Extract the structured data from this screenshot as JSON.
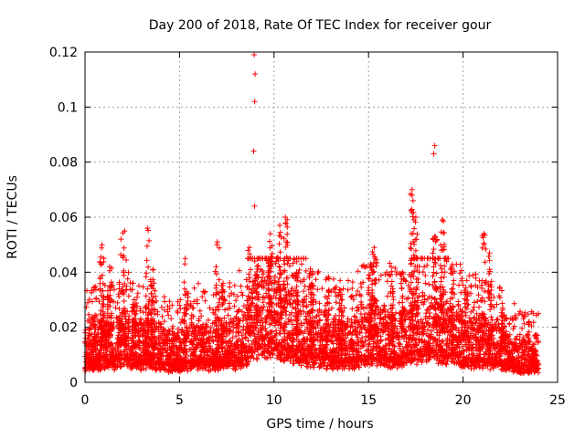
{
  "chart_data": {
    "type": "scatter",
    "title": "Day 200 of 2018, Rate Of TEC Index for receiver gour",
    "xlabel": "GPS time / hours",
    "ylabel": "ROTI / TECUs",
    "xlim": [
      0,
      25
    ],
    "ylim": [
      0,
      0.12
    ],
    "xticks": [
      "0",
      "5",
      "10",
      "15",
      "20",
      "25"
    ],
    "yticks": [
      "0",
      "0.02",
      "0.04",
      "0.06",
      "0.08",
      "0.1",
      "0.12"
    ],
    "grid": true,
    "marker": "+",
    "color": "#ff0000",
    "baseline": [
      [
        0.0,
        0.011
      ],
      [
        0.5,
        0.012
      ],
      [
        1.0,
        0.013
      ],
      [
        1.5,
        0.012
      ],
      [
        2.0,
        0.014
      ],
      [
        2.5,
        0.013
      ],
      [
        3.0,
        0.012
      ],
      [
        3.5,
        0.013
      ],
      [
        4.0,
        0.011
      ],
      [
        4.5,
        0.01
      ],
      [
        5.0,
        0.01
      ],
      [
        5.5,
        0.011
      ],
      [
        6.0,
        0.012
      ],
      [
        6.5,
        0.011
      ],
      [
        7.0,
        0.012
      ],
      [
        7.5,
        0.012
      ],
      [
        8.0,
        0.013
      ],
      [
        8.5,
        0.016
      ],
      [
        9.0,
        0.022
      ],
      [
        9.5,
        0.025
      ],
      [
        10.0,
        0.022
      ],
      [
        10.5,
        0.02
      ],
      [
        11.0,
        0.018
      ],
      [
        11.5,
        0.016
      ],
      [
        12.0,
        0.015
      ],
      [
        12.5,
        0.014
      ],
      [
        13.0,
        0.013
      ],
      [
        13.5,
        0.012
      ],
      [
        14.0,
        0.013
      ],
      [
        14.5,
        0.014
      ],
      [
        15.0,
        0.016
      ],
      [
        15.5,
        0.017
      ],
      [
        16.0,
        0.015
      ],
      [
        16.5,
        0.014
      ],
      [
        17.0,
        0.016
      ],
      [
        17.5,
        0.018
      ],
      [
        18.0,
        0.018
      ],
      [
        18.5,
        0.02
      ],
      [
        19.0,
        0.018
      ],
      [
        19.5,
        0.016
      ],
      [
        20.0,
        0.014
      ],
      [
        20.5,
        0.013
      ],
      [
        21.0,
        0.014
      ],
      [
        21.5,
        0.013
      ],
      [
        22.0,
        0.012
      ],
      [
        22.5,
        0.01
      ],
      [
        23.0,
        0.009
      ],
      [
        23.5,
        0.009
      ],
      [
        24.0,
        0.009
      ]
    ],
    "spikes": [
      {
        "x": 0.9,
        "ymax": 0.05
      },
      {
        "x": 1.3,
        "ymax": 0.042
      },
      {
        "x": 1.9,
        "ymax": 0.052
      },
      {
        "x": 2.1,
        "ymax": 0.055
      },
      {
        "x": 2.6,
        "ymax": 0.03
      },
      {
        "x": 3.3,
        "ymax": 0.056
      },
      {
        "x": 3.6,
        "ymax": 0.041
      },
      {
        "x": 5.3,
        "ymax": 0.045
      },
      {
        "x": 6.2,
        "ymax": 0.02
      },
      {
        "x": 7.0,
        "ymax": 0.051
      },
      {
        "x": 7.3,
        "ymax": 0.036
      },
      {
        "x": 8.7,
        "ymax": 0.049
      },
      {
        "x": 9.1,
        "ymax": 0.045
      },
      {
        "x": 9.8,
        "ymax": 0.054
      },
      {
        "x": 10.3,
        "ymax": 0.057
      },
      {
        "x": 10.6,
        "ymax": 0.06
      },
      {
        "x": 11.2,
        "ymax": 0.04
      },
      {
        "x": 12.0,
        "ymax": 0.036
      },
      {
        "x": 12.8,
        "ymax": 0.038
      },
      {
        "x": 13.5,
        "ymax": 0.037
      },
      {
        "x": 15.1,
        "ymax": 0.043
      },
      {
        "x": 15.3,
        "ymax": 0.049
      },
      {
        "x": 16.2,
        "ymax": 0.042
      },
      {
        "x": 16.8,
        "ymax": 0.04
      },
      {
        "x": 17.3,
        "ymax": 0.07
      },
      {
        "x": 17.5,
        "ymax": 0.06
      },
      {
        "x": 18.5,
        "ymax": 0.053
      },
      {
        "x": 18.9,
        "ymax": 0.059
      },
      {
        "x": 19.4,
        "ymax": 0.042
      },
      {
        "x": 20.2,
        "ymax": 0.037
      },
      {
        "x": 21.1,
        "ymax": 0.054
      },
      {
        "x": 21.4,
        "ymax": 0.047
      },
      {
        "x": 22.1,
        "ymax": 0.027
      }
    ],
    "outliers": [
      [
        8.95,
        0.119
      ],
      [
        9.0,
        0.112
      ],
      [
        8.98,
        0.102
      ],
      [
        8.92,
        0.084
      ],
      [
        8.97,
        0.064
      ],
      [
        18.5,
        0.086
      ],
      [
        18.45,
        0.083
      ],
      [
        17.3,
        0.068
      ],
      [
        17.35,
        0.066
      ],
      [
        17.4,
        0.059
      ]
    ]
  }
}
